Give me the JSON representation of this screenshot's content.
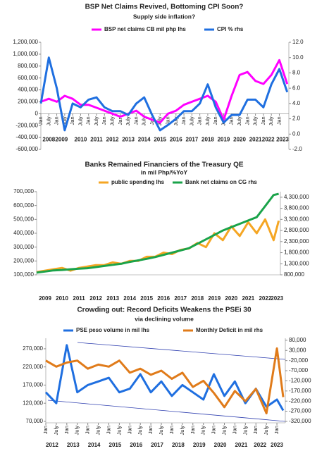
{
  "chart_data": [
    {
      "type": "line",
      "title": "BSP Net Claims Revived, Bottoming CPI Soon?",
      "subtitle": "Supply side inflation?",
      "x": [
        2008,
        2008.5,
        2009,
        2009.5,
        2010,
        2010.5,
        2011,
        2011.5,
        2012,
        2012.5,
        2013,
        2013.5,
        2014,
        2014.5,
        2015,
        2015.5,
        2016,
        2016.5,
        2017,
        2017.5,
        2018,
        2018.5,
        2019,
        2019.5,
        2020,
        2020.5,
        2021,
        2021.5,
        2022,
        2022.5,
        2023,
        2023.5
      ],
      "xlim": [
        2008,
        2023.6
      ],
      "xticks": [
        {
          "value": 2008,
          "label": "Jan"
        },
        {
          "value": 2008.5,
          "label": "July"
        },
        {
          "value": 2009,
          "label": "Jan"
        },
        {
          "value": 2009.5,
          "label": "July"
        },
        {
          "value": 2010,
          "label": "Jan"
        },
        {
          "value": 2010.5,
          "label": "July"
        },
        {
          "value": 2011,
          "label": "Jan"
        },
        {
          "value": 2011.5,
          "label": "July"
        },
        {
          "value": 2012,
          "label": "Jan"
        },
        {
          "value": 2012.5,
          "label": "July"
        },
        {
          "value": 2013,
          "label": "Jan"
        },
        {
          "value": 2013.5,
          "label": "July"
        },
        {
          "value": 2014,
          "label": "Jan"
        },
        {
          "value": 2014.5,
          "label": "July"
        },
        {
          "value": 2015,
          "label": "Jan"
        },
        {
          "value": 2015.5,
          "label": "July"
        },
        {
          "value": 2016,
          "label": "Jan"
        },
        {
          "value": 2016.5,
          "label": "July"
        },
        {
          "value": 2017,
          "label": "Jan"
        },
        {
          "value": 2017.5,
          "label": "July"
        },
        {
          "value": 2018,
          "label": "Jan"
        },
        {
          "value": 2018.5,
          "label": "July"
        },
        {
          "value": 2019,
          "label": "Jan"
        },
        {
          "value": 2019.5,
          "label": "July"
        },
        {
          "value": 2020,
          "label": "Jan"
        },
        {
          "value": 2020.5,
          "label": "July"
        },
        {
          "value": 2021,
          "label": "Jan"
        },
        {
          "value": 2021.5,
          "label": "July"
        },
        {
          "value": 2022,
          "label": "Jan"
        },
        {
          "value": 2022.5,
          "label": "July"
        },
        {
          "value": 2023,
          "label": "Jan"
        }
      ],
      "year_labels": [
        {
          "value": 2008.5,
          "label": "2008"
        },
        {
          "value": 2009.3,
          "label": "2009"
        },
        {
          "value": 2010.5,
          "label": "2010"
        },
        {
          "value": 2011.5,
          "label": "2011"
        },
        {
          "value": 2012.5,
          "label": "2012"
        },
        {
          "value": 2013.5,
          "label": "2013"
        },
        {
          "value": 2014.5,
          "label": "2014"
        },
        {
          "value": 2015.5,
          "label": "2015"
        },
        {
          "value": 2016.5,
          "label": "2016"
        },
        {
          "value": 2017.5,
          "label": "2017"
        },
        {
          "value": 2018.5,
          "label": "2018"
        },
        {
          "value": 2019.5,
          "label": "2019"
        },
        {
          "value": 2020.5,
          "label": "2020"
        },
        {
          "value": 2021.5,
          "label": "2021"
        },
        {
          "value": 2022.3,
          "label": "2022"
        },
        {
          "value": 2023.2,
          "label": "2023"
        }
      ],
      "ylim": [
        -600000,
        1200000
      ],
      "yticks": [
        {
          "value": 1200000,
          "label": "1,200,000"
        },
        {
          "value": 1000000,
          "label": "1,000,000"
        },
        {
          "value": 800000,
          "label": "800,000"
        },
        {
          "value": 600000,
          "label": "600,000"
        },
        {
          "value": 400000,
          "label": "400,000"
        },
        {
          "value": 200000,
          "label": "200,000"
        },
        0,
        {
          "value": -200000,
          "label": "-200,000"
        },
        {
          "value": -400000,
          "label": "-400,000"
        },
        {
          "value": -600000,
          "label": "-600,000"
        }
      ],
      "y2lim": [
        -2,
        12
      ],
      "y2ticks": [
        {
          "value": 12,
          "label": "12.0"
        },
        {
          "value": 10,
          "label": "10.0"
        },
        {
          "value": 8,
          "label": "8.0"
        },
        {
          "value": 6,
          "label": "6.0"
        },
        {
          "value": 4,
          "label": "4.0"
        },
        {
          "value": 2,
          "label": "2.0"
        },
        {
          "value": 0,
          "label": "0.0"
        },
        {
          "value": -2,
          "label": "-2.0"
        }
      ],
      "series": [
        {
          "name": "BSP net claims CB mil php lhs",
          "color": "#ff00ff",
          "values": [
            200000,
            250000,
            200000,
            300000,
            250000,
            150000,
            150000,
            100000,
            50000,
            0,
            -50000,
            0,
            50000,
            -50000,
            -100000,
            -150000,
            0,
            50000,
            150000,
            200000,
            250000,
            300000,
            200000,
            -100000,
            300000,
            650000,
            700000,
            550000,
            500000,
            650000,
            900000,
            500000
          ]
        },
        {
          "name": "CPI % rhs",
          "color": "#1f6fe0",
          "axis": "y2",
          "values": [
            4,
            10,
            6,
            0.5,
            4,
            3.5,
            4.5,
            4.8,
            3.5,
            3,
            3,
            2.5,
            4,
            4.8,
            2.5,
            0.5,
            1.2,
            2,
            3,
            3,
            4,
            6.5,
            3.5,
            1.5,
            2.5,
            2.5,
            4.5,
            4.5,
            3.5,
            6.5,
            8.5,
            5.5
          ]
        }
      ]
    },
    {
      "type": "line",
      "title": "Banks Remained Financiers of the Treasury QE",
      "subtitle": "in mil Php/%YoY",
      "x": [
        2009,
        2009.5,
        2010,
        2010.5,
        2011,
        2011.5,
        2012,
        2012.5,
        2013,
        2013.5,
        2014,
        2014.5,
        2015,
        2015.5,
        2016,
        2016.5,
        2017,
        2017.5,
        2018,
        2018.5,
        2019,
        2019.5,
        2020,
        2020.5,
        2021,
        2021.5,
        2022,
        2022.5,
        2023,
        2023.3
      ],
      "xlim": [
        2009,
        2023.4
      ],
      "year_labels": [
        {
          "value": 2009.5,
          "label": "2009"
        },
        {
          "value": 2010.5,
          "label": "2010"
        },
        {
          "value": 2011.5,
          "label": "2011"
        },
        {
          "value": 2012.5,
          "label": "2012"
        },
        {
          "value": 2013.5,
          "label": "2013"
        },
        {
          "value": 2014.5,
          "label": "2014"
        },
        {
          "value": 2015.5,
          "label": "2015"
        },
        {
          "value": 2016.5,
          "label": "2016"
        },
        {
          "value": 2017.5,
          "label": "2017"
        },
        {
          "value": 2018.5,
          "label": "2018"
        },
        {
          "value": 2019.5,
          "label": "2019"
        },
        {
          "value": 2020.5,
          "label": "2020"
        },
        {
          "value": 2021.5,
          "label": "2021"
        },
        {
          "value": 2022.5,
          "label": "2022"
        },
        {
          "value": 2023.2,
          "label": "2023"
        }
      ],
      "ylim": [
        100000,
        700000
      ],
      "yticks": [
        {
          "value": 700000,
          "label": "700,000"
        },
        {
          "value": 600000,
          "label": "600,000"
        },
        {
          "value": 500000,
          "label": "500,000"
        },
        {
          "value": 400000,
          "label": "400,000"
        },
        {
          "value": 300000,
          "label": "300,000"
        },
        {
          "value": 200000,
          "label": "200,000"
        },
        {
          "value": 100000,
          "label": "100,000"
        }
      ],
      "y2lim": [
        800000,
        4550000
      ],
      "y2ticks": [
        {
          "value": 4300000,
          "label": "4,300,000"
        },
        {
          "value": 3800000,
          "label": "3,800,000"
        },
        {
          "value": 3300000,
          "label": "3,300,000"
        },
        {
          "value": 2800000,
          "label": "2,800,000"
        },
        {
          "value": 2300000,
          "label": "2,300,000"
        },
        {
          "value": 1800000,
          "label": "1,800,000"
        },
        {
          "value": 1300000,
          "label": "1,300,000"
        },
        {
          "value": 800000,
          "label": "800,000"
        }
      ],
      "series": [
        {
          "name": "public spending lhs",
          "color": "#f5a623",
          "values": [
            120000,
            130000,
            140000,
            150000,
            130000,
            150000,
            160000,
            170000,
            170000,
            190000,
            180000,
            200000,
            200000,
            230000,
            230000,
            260000,
            250000,
            280000,
            290000,
            330000,
            300000,
            400000,
            350000,
            450000,
            380000,
            480000,
            400000,
            500000,
            350000,
            490000
          ]
        },
        {
          "name": "Bank net claims on CG rhs",
          "color": "#1aa34a",
          "axis": "y2",
          "values": [
            900000,
            950000,
            1000000,
            1020000,
            1050000,
            1080000,
            1100000,
            1150000,
            1200000,
            1250000,
            1300000,
            1380000,
            1450000,
            1520000,
            1600000,
            1700000,
            1800000,
            1900000,
            2000000,
            2200000,
            2400000,
            2600000,
            2800000,
            2950000,
            3100000,
            3250000,
            3400000,
            3900000,
            4400000,
            4450000
          ]
        }
      ]
    },
    {
      "type": "line",
      "title": "Crowding out: Record Deficits Weakens the PSEi 30",
      "subtitle": "via declining volume",
      "x": [
        2012,
        2012.5,
        2013,
        2013.5,
        2014,
        2014.5,
        2015,
        2015.5,
        2016,
        2016.5,
        2017,
        2017.5,
        2018,
        2018.5,
        2019,
        2019.5,
        2020,
        2020.5,
        2021,
        2021.5,
        2022,
        2022.5,
        2023,
        2023.3
      ],
      "xlim": [
        2012,
        2023.4
      ],
      "xticks": [
        {
          "value": 2012,
          "label": "Jan"
        },
        {
          "value": 2012.5,
          "label": "July"
        },
        {
          "value": 2013,
          "label": "Jan"
        },
        {
          "value": 2013.5,
          "label": "July"
        },
        {
          "value": 2014,
          "label": "Jan"
        },
        {
          "value": 2014.5,
          "label": "July"
        },
        {
          "value": 2015,
          "label": "Jan"
        },
        {
          "value": 2015.5,
          "label": "July"
        },
        {
          "value": 2016,
          "label": "Jan"
        },
        {
          "value": 2016.5,
          "label": "July"
        },
        {
          "value": 2017,
          "label": "Jan"
        },
        {
          "value": 2017.5,
          "label": "July"
        },
        {
          "value": 2018,
          "label": "Jan"
        },
        {
          "value": 2018.5,
          "label": "July"
        },
        {
          "value": 2019,
          "label": "Jan"
        },
        {
          "value": 2019.5,
          "label": "July"
        },
        {
          "value": 2020,
          "label": "Jan"
        },
        {
          "value": 2020.5,
          "label": "July"
        },
        {
          "value": 2021,
          "label": "Jan"
        },
        {
          "value": 2021.5,
          "label": "July"
        },
        {
          "value": 2022,
          "label": "Jan"
        },
        {
          "value": 2022.5,
          "label": "July"
        },
        {
          "value": 2023,
          "label": "Jan"
        }
      ],
      "year_labels": [
        {
          "value": 2012.3,
          "label": "2012"
        },
        {
          "value": 2013.3,
          "label": "2013"
        },
        {
          "value": 2014.3,
          "label": "2014"
        },
        {
          "value": 2015.3,
          "label": "2015"
        },
        {
          "value": 2016.3,
          "label": "2016"
        },
        {
          "value": 2017.3,
          "label": "2017"
        },
        {
          "value": 2018.3,
          "label": "2018"
        },
        {
          "value": 2019.3,
          "label": "2019"
        },
        {
          "value": 2020.3,
          "label": "2020"
        },
        {
          "value": 2021.3,
          "label": "2021"
        },
        {
          "value": 2022.2,
          "label": "2022"
        },
        {
          "value": 2023,
          "label": "2023"
        }
      ],
      "ylim": [
        66000,
        299000
      ],
      "yticks": [
        {
          "value": 270000,
          "label": "270,000"
        },
        {
          "value": 220000,
          "label": "220,000"
        },
        {
          "value": 170000,
          "label": "170,000"
        },
        {
          "value": 120000,
          "label": "120,000"
        },
        {
          "value": 70000,
          "label": "70,000"
        }
      ],
      "y2lim": [
        -327000,
        90000
      ],
      "y2ticks": [
        {
          "value": 80000,
          "label": "80,000"
        },
        {
          "value": 30000,
          "label": "30,000"
        },
        {
          "value": -20000,
          "label": "-20,000"
        },
        {
          "value": -70000,
          "label": "-70,000"
        },
        {
          "value": -120000,
          "label": "-120,000"
        },
        {
          "value": -170000,
          "label": "-170,000"
        },
        {
          "value": -220000,
          "label": "-220,000"
        },
        {
          "value": -270000,
          "label": "-270,000"
        },
        {
          "value": -320000,
          "label": "-320,000"
        }
      ],
      "series": [
        {
          "name": "PSE peso volume in mil lhs",
          "color": "#1f6fe0",
          "values": [
            150000,
            120000,
            280000,
            150000,
            170000,
            180000,
            190000,
            150000,
            160000,
            200000,
            150000,
            180000,
            140000,
            170000,
            150000,
            130000,
            200000,
            140000,
            180000,
            120000,
            160000,
            110000,
            130000,
            100000
          ]
        },
        {
          "name": "Monthly Deficit in mil rhs",
          "color": "#e07b1a",
          "axis": "y2",
          "values": [
            -20000,
            -50000,
            -30000,
            -20000,
            -60000,
            -40000,
            -50000,
            -20000,
            -80000,
            -60000,
            -90000,
            -70000,
            -110000,
            -80000,
            -150000,
            -120000,
            -180000,
            -250000,
            -170000,
            -220000,
            -160000,
            -280000,
            40000,
            -200000
          ]
        }
      ]
    }
  ]
}
